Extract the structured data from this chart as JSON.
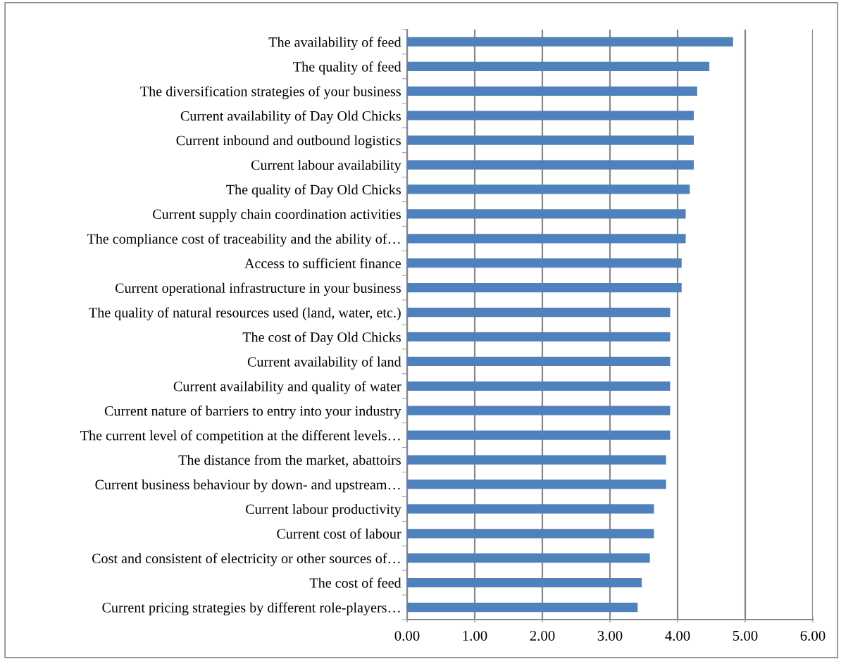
{
  "chart_data": {
    "type": "bar",
    "orientation": "horizontal",
    "categories": [
      "The availability of feed",
      "The quality of feed",
      "The diversification strategies of your business",
      "Current availability of Day Old Chicks",
      "Current inbound and outbound logistics",
      "Current labour availability",
      "The quality of Day Old Chicks",
      "Current supply chain coordination activities",
      "The compliance cost of traceability and the ability of…",
      "Access to sufficient finance",
      "Current operational infrastructure in your business",
      "The quality of natural resources used (land, water, etc.)",
      "The cost of Day Old Chicks",
      "Current availability of land",
      "Current availability and quality of water",
      "Current nature of barriers to entry into your industry",
      "The current level of competition at the different levels…",
      "The distance from the market, abattoirs",
      "Current business behaviour by down- and upstream…",
      "Current labour productivity",
      "Current cost of labour",
      "Cost and consistent of electricity or other sources of…",
      "The cost of feed",
      "Current pricing strategies by different role-players…"
    ],
    "values": [
      4.82,
      4.47,
      4.29,
      4.24,
      4.24,
      4.24,
      4.18,
      4.12,
      4.12,
      4.06,
      4.06,
      3.89,
      3.89,
      3.89,
      3.89,
      3.89,
      3.89,
      3.83,
      3.83,
      3.65,
      3.65,
      3.59,
      3.47,
      3.41
    ],
    "color": "#4f81bd",
    "xlim": [
      0,
      6
    ],
    "xticks": [
      {
        "value": 0,
        "label": "0.00"
      },
      {
        "value": 1,
        "label": "1.00"
      },
      {
        "value": 2,
        "label": "2.00"
      },
      {
        "value": 3,
        "label": "3.00"
      },
      {
        "value": 4,
        "label": "4.00"
      },
      {
        "value": 5,
        "label": "5.00"
      },
      {
        "value": 6,
        "label": "6.00"
      }
    ],
    "grid": "x",
    "legend": false
  }
}
